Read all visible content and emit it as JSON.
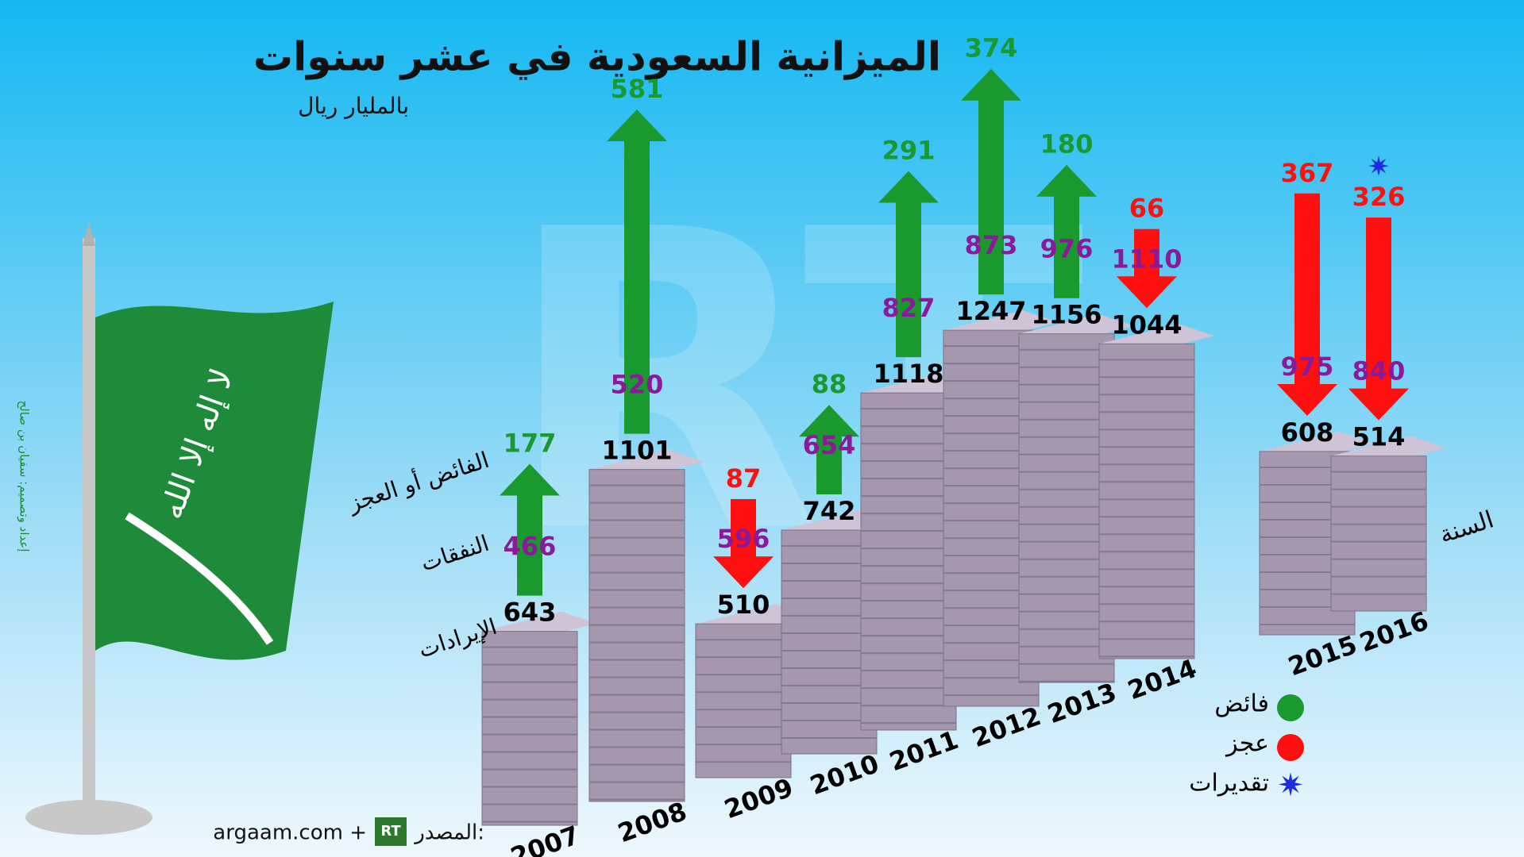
{
  "chart_data": {
    "type": "budget-stacks",
    "title": "الميزانية السعودية في عشر سنوات",
    "subtitle": "بالمليار ريال",
    "x_label": "السنة",
    "categories": [
      "2007",
      "2008",
      "2009",
      "2010",
      "2011",
      "2012",
      "2013",
      "2014",
      "2015",
      "2016"
    ],
    "series": [
      {
        "name": "الإيرادات",
        "color": "#000000",
        "values": [
          643,
          1101,
          510,
          742,
          1118,
          1247,
          1156,
          1044,
          608,
          514
        ]
      },
      {
        "name": "النفقات",
        "color": "#8b1a9a",
        "values": [
          466,
          520,
          596,
          654,
          827,
          873,
          976,
          1110,
          975,
          840
        ]
      }
    ],
    "balance_label": "الفائض أو العجز",
    "balance_series": [
      {
        "name": "فائض",
        "color": "#1a9a2e",
        "values": [
          177,
          581,
          null,
          88,
          291,
          374,
          180,
          null,
          null,
          null
        ]
      },
      {
        "name": "عجز",
        "color": "#ff1010",
        "values": [
          null,
          null,
          87,
          null,
          null,
          null,
          null,
          66,
          367,
          326
        ]
      }
    ],
    "estimate": {
      "name": "تقديرات",
      "color": "#1a2be0",
      "categories": [
        "2016"
      ]
    }
  },
  "source": {
    "label": "المصدر:",
    "logo": "RT",
    "text": "argaam.com +"
  },
  "credit": "إعداد وتصميم: سفيان بن صالح",
  "watermark": "RT"
}
